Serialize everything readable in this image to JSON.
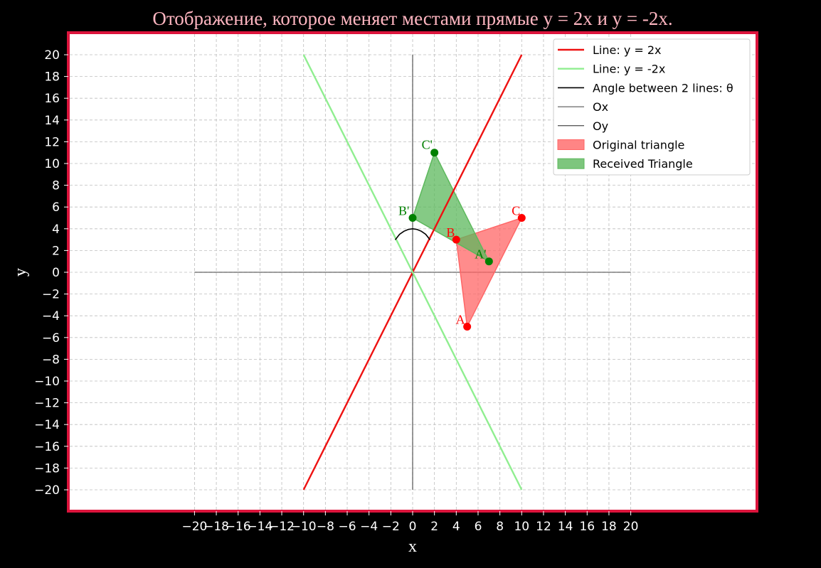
{
  "chart_data": {
    "type": "line",
    "title": "Отображение, которое меняет местами прямые y = 2x и y = -2x.",
    "xlabel": "x",
    "ylabel": "y",
    "xlim": [
      -20,
      20
    ],
    "ylim": [
      -20,
      20
    ],
    "grid": true,
    "legend_position": "top-right",
    "colors": {
      "title": "#ffb6c1",
      "frame": "#dc143c",
      "line_pos": "#ee1111",
      "line_neg": "#90ee90",
      "original_fill": "#ff6666",
      "received_fill": "#5cb85c",
      "point_original": "#ff0000",
      "point_received": "#008000"
    },
    "x_ticks": [
      -20,
      -18,
      -16,
      -14,
      -12,
      -10,
      -8,
      -6,
      -4,
      -2,
      0,
      2,
      4,
      6,
      8,
      10,
      12,
      14,
      16,
      18,
      20
    ],
    "y_ticks": [
      -20,
      -18,
      -16,
      -14,
      -12,
      -10,
      -8,
      -6,
      -4,
      -2,
      0,
      2,
      4,
      6,
      8,
      10,
      12,
      14,
      16,
      18,
      20
    ],
    "series": [
      {
        "name": "Line: y = 2x",
        "x": [
          -10,
          10
        ],
        "y": [
          -20,
          20
        ]
      },
      {
        "name": "Line: y = -2x",
        "x": [
          -10,
          10
        ],
        "y": [
          20,
          -20
        ]
      },
      {
        "name": "Angle between 2 lines: θ",
        "x": [
          -1.6,
          -1.2,
          -0.8,
          -0.4,
          0,
          0.4,
          0.8,
          1.2,
          1.6
        ],
        "y": [
          2.98,
          3.49,
          3.77,
          3.94,
          4.0,
          3.94,
          3.77,
          3.49,
          2.98
        ]
      },
      {
        "name": "Ox",
        "x": [
          -20,
          20
        ],
        "y": [
          0,
          0
        ]
      },
      {
        "name": "Oy",
        "x": [
          0,
          0
        ],
        "y": [
          -20,
          20
        ]
      }
    ],
    "triangles": [
      {
        "name": "Original triangle",
        "points": [
          {
            "label": "A",
            "x": 5,
            "y": -5
          },
          {
            "label": "B",
            "x": 4,
            "y": 3
          },
          {
            "label": "C",
            "x": 10,
            "y": 5
          }
        ]
      },
      {
        "name": "Received Triangle",
        "points": [
          {
            "label": "A'",
            "x": 7,
            "y": 1
          },
          {
            "label": "B'",
            "x": 0,
            "y": 5
          },
          {
            "label": "C'",
            "x": 2,
            "y": 11
          }
        ]
      }
    ]
  }
}
